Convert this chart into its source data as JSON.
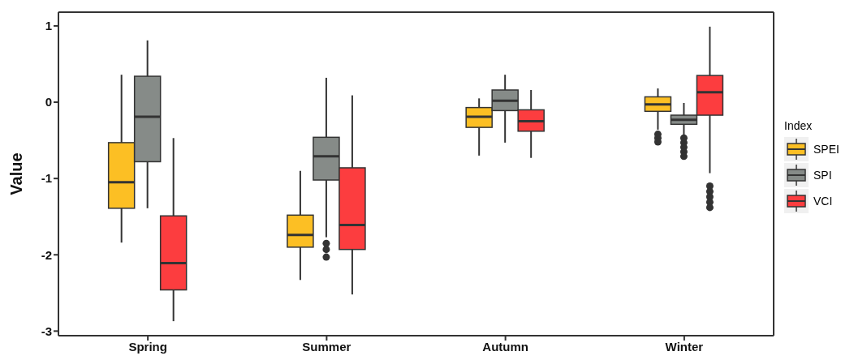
{
  "chart_data": {
    "type": "box",
    "ylabel": "Value",
    "legend_title": "Index",
    "legend": "right",
    "grid": false,
    "categories": [
      "Spring",
      "Summer",
      "Autumn",
      "Winter"
    ],
    "ylim": [
      -3.06,
      1.18
    ],
    "yticks": [
      -3,
      -2,
      -1,
      0,
      1
    ],
    "series": [
      {
        "name": "SPEI",
        "color": "#fcbf24",
        "boxes": [
          {
            "low": -1.84,
            "q1": -1.39,
            "median": -1.05,
            "q3": -0.53,
            "high": 0.36
          },
          {
            "low": -2.33,
            "q1": -1.9,
            "median": -1.74,
            "q3": -1.48,
            "high": -0.9
          },
          {
            "low": -0.7,
            "q1": -0.33,
            "median": -0.19,
            "q3": -0.07,
            "high": 0.05
          },
          {
            "low": -0.36,
            "q1": -0.12,
            "median": -0.03,
            "q3": 0.07,
            "high": 0.18,
            "outliers": [
              -0.42,
              -0.47,
              -0.52
            ]
          }
        ]
      },
      {
        "name": "SPI",
        "color": "#868b88",
        "boxes": [
          {
            "low": -1.39,
            "q1": -0.78,
            "median": -0.19,
            "q3": 0.34,
            "high": 0.81
          },
          {
            "low": -1.77,
            "q1": -1.02,
            "median": -0.71,
            "q3": -0.46,
            "high": 0.32,
            "outliers": [
              -1.85,
              -1.93,
              -2.03
            ]
          },
          {
            "low": -0.53,
            "q1": -0.11,
            "median": 0.02,
            "q3": 0.16,
            "high": 0.36
          },
          {
            "low": -0.43,
            "q1": -0.29,
            "median": -0.23,
            "q3": -0.17,
            "high": -0.01,
            "outliers": [
              -0.47,
              -0.53,
              -0.59,
              -0.65,
              -0.71
            ]
          }
        ]
      },
      {
        "name": "VCI",
        "color": "#fc3d3f",
        "boxes": [
          {
            "low": -2.87,
            "q1": -2.46,
            "median": -2.11,
            "q3": -1.49,
            "high": -0.47
          },
          {
            "low": -2.52,
            "q1": -1.93,
            "median": -1.61,
            "q3": -0.86,
            "high": 0.09
          },
          {
            "low": -0.73,
            "q1": -0.38,
            "median": -0.25,
            "q3": -0.1,
            "high": 0.16
          },
          {
            "low": -0.93,
            "q1": -0.17,
            "median": 0.13,
            "q3": 0.35,
            "high": 0.99,
            "outliers": [
              -1.1,
              -1.17,
              -1.24,
              -1.31,
              -1.38
            ]
          }
        ]
      }
    ]
  }
}
